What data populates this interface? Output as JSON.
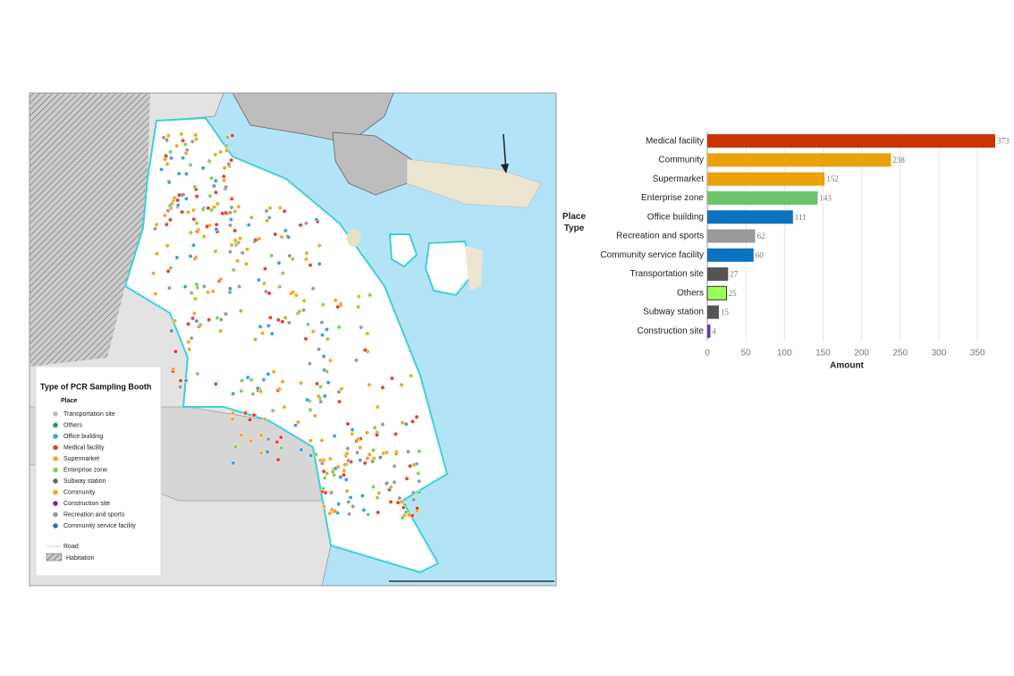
{
  "chart_data": {
    "type": "bar",
    "orientation": "horizontal",
    "y_label": "Place Type",
    "x_label": "Amount",
    "categories": [
      "Medical facility",
      "Community",
      "Supermarket",
      "Enterprise zone",
      "Office building",
      "Recreation and sports",
      "Community service facility",
      "Transportation site",
      "Others",
      "Subway station",
      "Construction site"
    ],
    "values": [
      373,
      238,
      152,
      143,
      111,
      62,
      60,
      27,
      25,
      15,
      4
    ],
    "colors": [
      "#cc3300",
      "#e9a20a",
      "#e9a20a",
      "#6cc46c",
      "#0b72c0",
      "#9a9a9a",
      "#0b72c0",
      "#555555",
      "#99ff55",
      "#555555",
      "#7030a0"
    ],
    "xlim": [
      0,
      380
    ],
    "xticks": [
      0,
      50,
      100,
      150,
      200,
      250,
      300,
      350
    ],
    "grid": true
  },
  "map": {
    "legend": {
      "title": "Type of PCR Sampling Booth",
      "subtitle": "Place",
      "items": [
        "Transportation site",
        "Others",
        "Office building",
        "Medical facility",
        "Supermarket",
        "Enterprise zone",
        "Subway station",
        "Community",
        "Construction site",
        "Recreation and sports",
        "Community service facility"
      ],
      "extras": [
        "Road",
        "Habitation"
      ]
    }
  }
}
